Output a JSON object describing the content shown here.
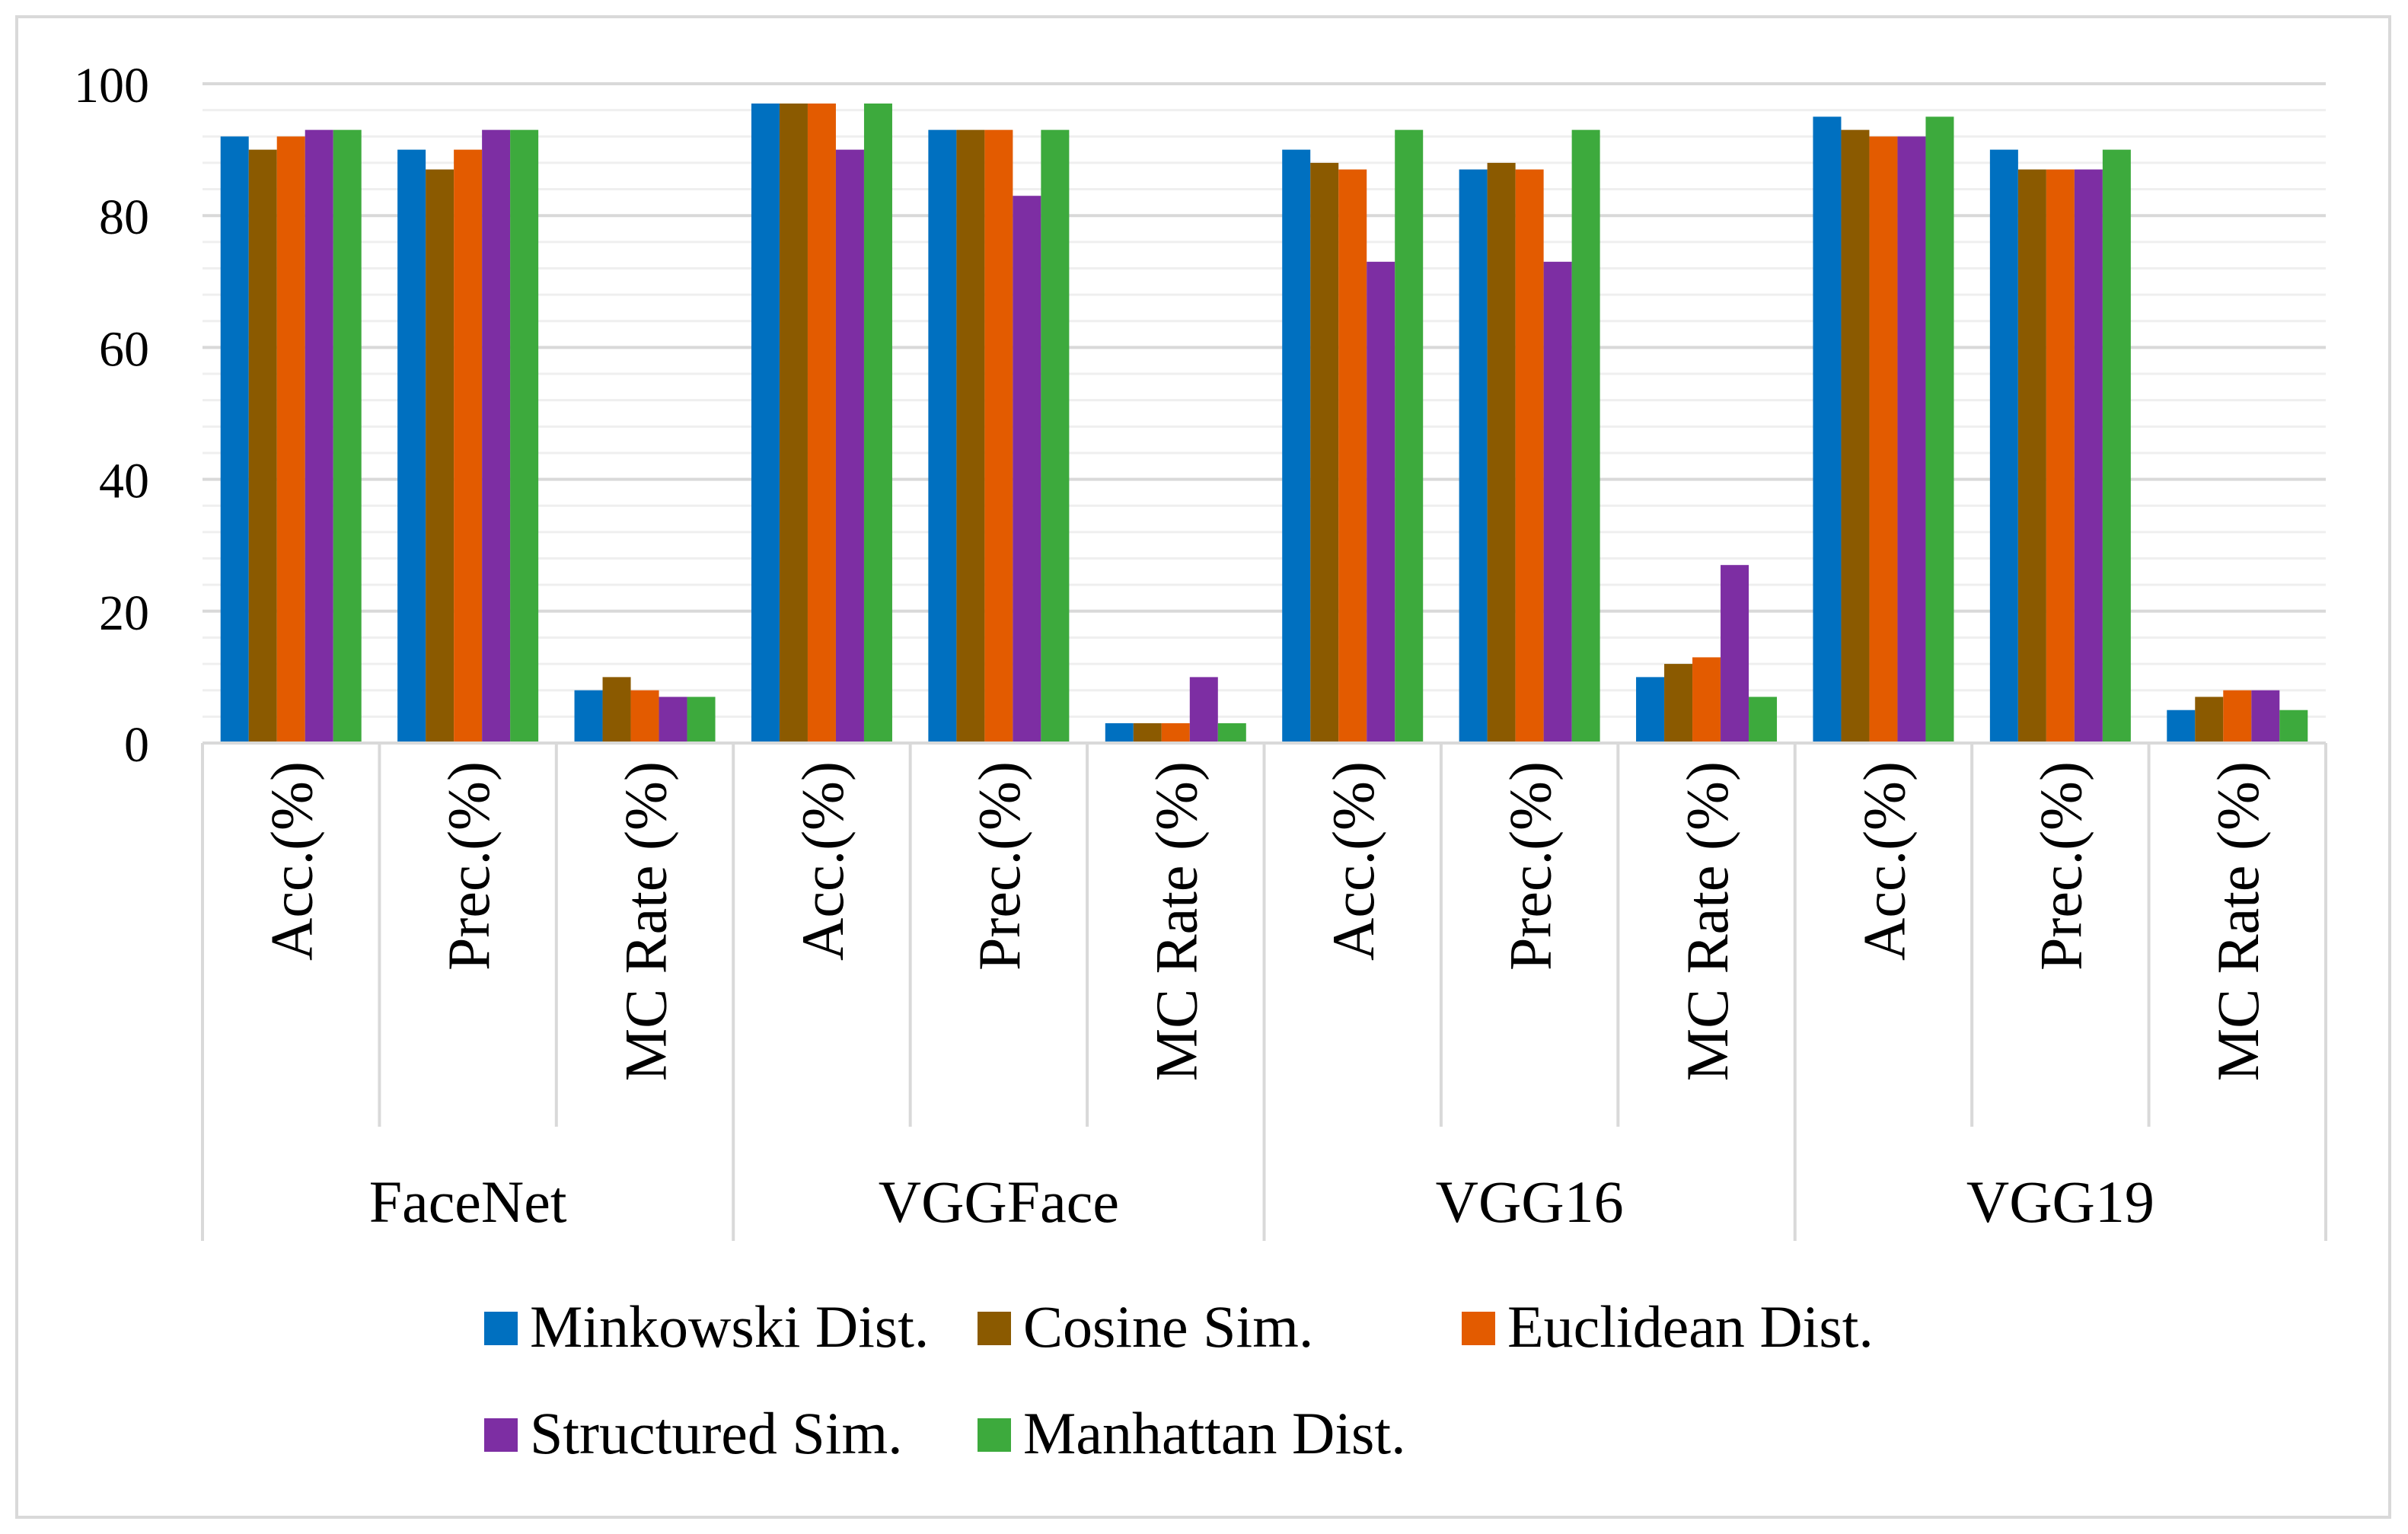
{
  "chart_data": {
    "type": "bar",
    "title": "",
    "xlabel": "",
    "ylabel": "",
    "ylim": [
      0,
      100
    ],
    "yticks": [
      0,
      20,
      40,
      60,
      80,
      100
    ],
    "grid": true,
    "legend_position": "bottom",
    "groups": [
      "FaceNet",
      "VGGFace",
      "VGG16",
      "VGG19"
    ],
    "metrics": [
      "Acc.(%)",
      "Prec.(%)",
      "MC Rate (%)"
    ],
    "categories": [
      "Acc.(%)",
      "Prec.(%)",
      "MC Rate (%)",
      "Acc.(%)",
      "Prec.(%)",
      "MC Rate (%)",
      "Acc.(%)",
      "Prec.(%)",
      "MC Rate (%)",
      "Acc.(%)",
      "Prec.(%)",
      "MC Rate (%)"
    ],
    "series": [
      {
        "name": "Minkowski Dist.",
        "color": "#0070c0",
        "values": [
          92,
          90,
          8,
          97,
          93,
          3,
          90,
          87,
          10,
          95,
          90,
          5
        ]
      },
      {
        "name": "Cosine Sim.",
        "color": "#8b5a00",
        "values": [
          90,
          87,
          10,
          97,
          93,
          3,
          88,
          88,
          12,
          93,
          87,
          7
        ]
      },
      {
        "name": "Euclidean Dist.",
        "color": "#e35b00",
        "values": [
          92,
          90,
          8,
          97,
          93,
          3,
          87,
          87,
          13,
          92,
          87,
          8
        ]
      },
      {
        "name": "Structured Sim.",
        "color": "#7d2ea3",
        "values": [
          93,
          93,
          7,
          90,
          83,
          10,
          73,
          73,
          27,
          92,
          87,
          8
        ]
      },
      {
        "name": "Manhattan Dist.",
        "color": "#3daa3d",
        "values": [
          93,
          93,
          7,
          97,
          93,
          3,
          93,
          93,
          7,
          95,
          90,
          5
        ]
      }
    ]
  }
}
